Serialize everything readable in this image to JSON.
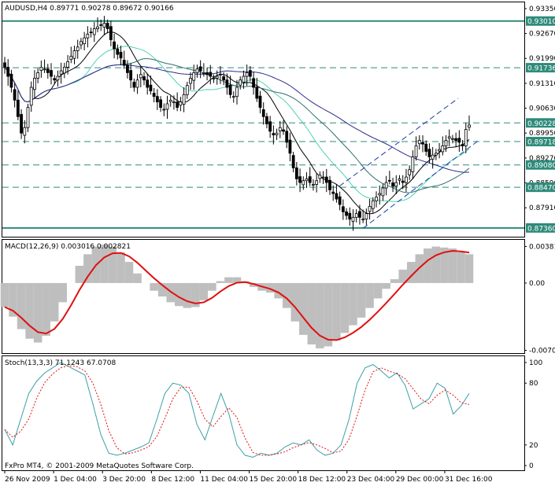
{
  "chart_data": [
    {
      "type": "candlestick",
      "panel": "price",
      "header": "AUDUSD,H4  0.89771 0.90278 0.89672 0.90166",
      "symbol": "AUDUSD",
      "timeframe": "H4",
      "ohlc_readout": [
        0.89771,
        0.90278,
        0.89672,
        0.90166
      ],
      "ylim": [
        0.8712,
        0.9352
      ],
      "y_ticks": [
        "0.93350",
        "0.92670",
        "0.91990",
        "0.91310",
        "0.90630",
        "0.89950",
        "0.89270",
        "0.88590",
        "0.87910"
      ],
      "levels": [
        {
          "value": 0.9301,
          "label": "0.93010",
          "style": "solid"
        },
        {
          "value": 0.91736,
          "label": "0.91736",
          "style": "dashed"
        },
        {
          "value": 0.90228,
          "label": "0.90228",
          "style": "dashed"
        },
        {
          "value": 0.89718,
          "label": "0.89718",
          "style": "dashed"
        },
        {
          "value": 0.8908,
          "label": "0.89080",
          "style": "dashed"
        },
        {
          "value": 0.8847,
          "label": "0.88470",
          "style": "dashed"
        },
        {
          "value": 0.8736,
          "label": "0.87360",
          "style": "solid"
        }
      ],
      "close": [
        0.9175,
        0.915,
        0.912,
        0.9085,
        0.904,
        0.8995,
        0.901,
        0.9065,
        0.912,
        0.9145,
        0.916,
        0.9175,
        0.917,
        0.916,
        0.915,
        0.914,
        0.915,
        0.9165,
        0.9175,
        0.919,
        0.9205,
        0.922,
        0.923,
        0.9245,
        0.9255,
        0.9265,
        0.927,
        0.928,
        0.9285,
        0.929,
        0.9295,
        0.928,
        0.925,
        0.9225,
        0.921,
        0.92,
        0.918,
        0.916,
        0.914,
        0.912,
        0.914,
        0.9155,
        0.914,
        0.912,
        0.911,
        0.9095,
        0.908,
        0.9065,
        0.906,
        0.9075,
        0.9085,
        0.908,
        0.9065,
        0.908,
        0.91,
        0.9125,
        0.9145,
        0.916,
        0.917,
        0.9165,
        0.916,
        0.9155,
        0.915,
        0.9145,
        0.915,
        0.9155,
        0.914,
        0.912,
        0.91,
        0.9095,
        0.912,
        0.914,
        0.915,
        0.916,
        0.915,
        0.912,
        0.909,
        0.9065,
        0.904,
        0.902,
        0.9,
        0.899,
        0.8995,
        0.901,
        0.9,
        0.897,
        0.894,
        0.89,
        0.887,
        0.886,
        0.8865,
        0.887,
        0.886,
        0.8855,
        0.8865,
        0.888,
        0.8875,
        0.886,
        0.884,
        0.883,
        0.8815,
        0.88,
        0.878,
        0.877,
        0.876,
        0.8765,
        0.8775,
        0.8765,
        0.876,
        0.8775,
        0.8795,
        0.881,
        0.882,
        0.883,
        0.8845,
        0.886,
        0.8865,
        0.885,
        0.886,
        0.887,
        0.886,
        0.8875,
        0.8895,
        0.893,
        0.896,
        0.8975,
        0.8965,
        0.8945,
        0.893,
        0.8935,
        0.894,
        0.895,
        0.896,
        0.8975,
        0.8985,
        0.898,
        0.8975,
        0.897,
        0.896,
        0.9005,
        0.9017
      ]
    },
    {
      "type": "macd",
      "panel": "macd",
      "header": "MACD(12,26,9) 0.003016 0.002821",
      "params": "12,26,9",
      "main": 0.003016,
      "signal": 0.002821,
      "ylim": [
        -0.0073,
        0.0045
      ],
      "y_ticks": [
        "0.00381",
        "0.00",
        "-0.00701"
      ],
      "histogram": [
        -0.0025,
        -0.0035,
        -0.0048,
        -0.0058,
        -0.0062,
        -0.0055,
        -0.004,
        -0.002,
        0.0,
        0.0018,
        0.003,
        0.0038,
        0.004,
        0.0038,
        0.0032,
        0.0022,
        0.001,
        0.0,
        -0.0008,
        -0.0014,
        -0.002,
        -0.0024,
        -0.0026,
        -0.0025,
        -0.0018,
        -0.0008,
        0.0002,
        0.0006,
        0.0006,
        0.0002,
        -0.0004,
        -0.0008,
        -0.001,
        -0.0016,
        -0.0026,
        -0.004,
        -0.0054,
        -0.0064,
        -0.0068,
        -0.0066,
        -0.006,
        -0.0052,
        -0.0044,
        -0.0036,
        -0.0026,
        -0.0016,
        -0.0006,
        0.0004,
        0.0014,
        0.0022,
        0.003,
        0.0036,
        0.0038,
        0.0037,
        0.0036,
        0.0032,
        0.003
      ]
    },
    {
      "type": "stochastic",
      "panel": "stoch",
      "header": "Stoch(13,3,3) 71.1243 67.0708",
      "params": "13,3,3",
      "main": 71.1243,
      "signal": 67.0708,
      "ylim": [
        0,
        100
      ],
      "y_ticks": [
        "100",
        "80",
        "20",
        "0"
      ],
      "values": [
        35,
        20,
        45,
        70,
        82,
        90,
        95,
        100,
        96,
        92,
        88,
        60,
        30,
        12,
        10,
        12,
        15,
        18,
        22,
        45,
        70,
        80,
        78,
        70,
        40,
        25,
        48,
        70,
        50,
        20,
        10,
        8,
        12,
        10,
        12,
        18,
        22,
        20,
        25,
        15,
        10,
        12,
        20,
        45,
        80,
        95,
        98,
        92,
        85,
        90,
        78,
        55,
        60,
        65,
        80,
        75,
        50,
        58,
        70
      ]
    }
  ],
  "x_axis": {
    "tick_labels": [
      "26 Nov 2009",
      "1 Dec 04:00",
      "3 Dec 20:00",
      "8 Dec 12:00",
      "11 Dec 04:00",
      "15 Dec 20:00",
      "18 Dec 12:00",
      "23 Dec 04:00",
      "29 Dec 00:00",
      "31 Dec 16:00"
    ]
  },
  "footer": {
    "copyright": "FxPro MT4, © 2001-2009 MetaQuotes Software Corp."
  },
  "colors": {
    "up_candle": "#ffffff",
    "down_candle": "#000000",
    "level_line": "#2e8b7a",
    "ma_fast": "#4fd1b5",
    "ma_slow": "#2c2c8c",
    "ma_mid": "#2f6f6f",
    "ma_black": "#000000",
    "channel": "#1e3aa8",
    "macd_hist": "#bebebe",
    "macd_signal": "#e01010",
    "stoch_main": "#3aa0a8",
    "stoch_signal": "#e01010"
  }
}
